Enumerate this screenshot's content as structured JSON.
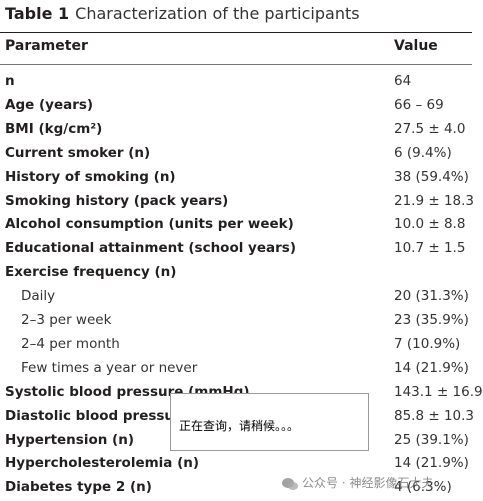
{
  "header": {
    "label": "Table 1",
    "title": "Characterization of the participants"
  },
  "table": {
    "columns": [
      "Parameter",
      "Value"
    ],
    "rows": [
      {
        "parameter": "n",
        "value": "64"
      },
      {
        "parameter": "Age (years)",
        "value": "66 – 69"
      },
      {
        "parameter": "BMI (kg/cm²)",
        "value": "27.5 ± 4.0"
      },
      {
        "parameter": "Current smoker (n)",
        "value": "6 (9.4%)"
      },
      {
        "parameter": "History of smoking (n)",
        "value": "38 (59.4%)"
      },
      {
        "parameter": "Smoking history (pack years)",
        "value": "21.9 ± 18.3"
      },
      {
        "parameter": "Alcohol consumption (units per week)",
        "value": "10.0 ± 8.8"
      },
      {
        "parameter": "Educational attainment (school years)",
        "value": "10.7 ± 1.5"
      },
      {
        "parameter": "Exercise frequency (n)",
        "items": [
          {
            "parameter": "Daily",
            "value": "20 (31.3%)"
          },
          {
            "parameter": "2–3 per week",
            "value": "23 (35.9%)"
          },
          {
            "parameter": "2–4 per month",
            "value": "7 (10.9%)"
          },
          {
            "parameter": "Few times a year or never",
            "value": "14 (21.9%)"
          }
        ]
      },
      {
        "parameter": "Systolic blood pressure (mmHg)",
        "value": "143.1 ± 16.9"
      },
      {
        "parameter": "Diastolic blood pressure (mmHg)",
        "value": "85.8 ± 10.3"
      },
      {
        "parameter": "Hypertension (n)",
        "value": "25 (39.1%)"
      },
      {
        "parameter": "Hypercholesterolemia (n)",
        "value": "14 (21.9%)"
      },
      {
        "parameter": "Diabetes type 2 (n)",
        "value": "4 (6.3%)"
      }
    ]
  },
  "popup": {
    "text": "正在查询，请稍候。。。"
  },
  "watermark": {
    "text": "公众号 · 神经影像石大夫"
  }
}
